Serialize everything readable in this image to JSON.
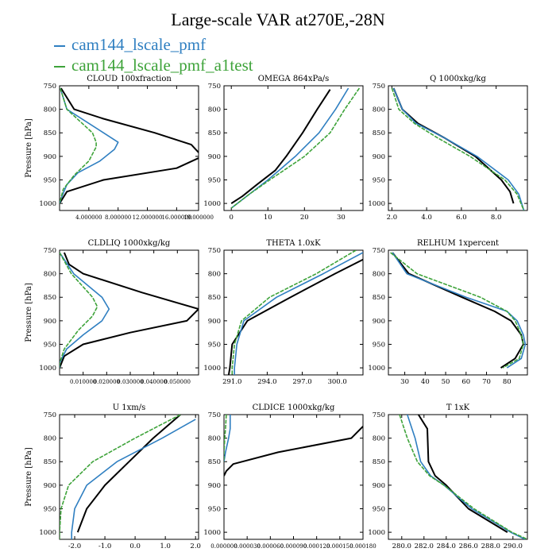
{
  "title": "Large-scale VAR at270E,-28N",
  "legend": [
    {
      "name": "cam144_lscale_pmf",
      "color": "#2f7fc1"
    },
    {
      "name": "cam144_lscale_pmf_a1test",
      "color": "#3ea33a"
    }
  ],
  "colors": {
    "ref": "#000000"
  },
  "chart_data": [
    {
      "type": "line",
      "title": "CLOUD  100xfraction",
      "ylabel": "Pressure [hPa]",
      "xlim": [
        0.0,
        0.19
      ],
      "ylim": [
        750,
        1015
      ],
      "xticks": [
        0.04,
        0.08,
        0.12,
        0.16,
        0.19
      ],
      "xtick_labels": [
        "4.000000",
        "8.000000",
        "12.000000",
        "16.000000",
        "19.000000"
      ],
      "yticks": [
        750,
        800,
        850,
        900,
        950,
        1000
      ],
      "ytick_labels": [
        "750",
        "800",
        "850",
        "900",
        "950",
        "1000"
      ],
      "series": [
        {
          "color": "#000000",
          "y": [
            755,
            800,
            820,
            850,
            875,
            900,
            925,
            950,
            975,
            1000
          ],
          "x": [
            0.002,
            0.02,
            0.06,
            0.13,
            0.18,
            0.195,
            0.16,
            0.06,
            0.01,
            0.0
          ]
        },
        {
          "color": "#2f7fc1",
          "y": [
            755,
            800,
            850,
            870,
            885,
            910,
            935,
            960,
            990,
            1000
          ],
          "x": [
            0.001,
            0.01,
            0.06,
            0.08,
            0.075,
            0.055,
            0.025,
            0.01,
            0.002,
            0.0
          ]
        },
        {
          "color": "#3ea33a",
          "y": [
            755,
            800,
            850,
            870,
            880,
            910,
            940,
            970,
            1000
          ],
          "x": [
            0.001,
            0.01,
            0.045,
            0.05,
            0.05,
            0.04,
            0.02,
            0.005,
            0.0
          ]
        }
      ]
    },
    {
      "type": "line",
      "title": "OMEGA  864xPa/s",
      "ylabel": "",
      "xlim": [
        -2,
        36
      ],
      "ylim": [
        750,
        1015
      ],
      "xticks": [
        0,
        10,
        20,
        30
      ],
      "xtick_labels": [
        "0",
        "10",
        "20",
        "30"
      ],
      "yticks": [
        750,
        800,
        850,
        900,
        950,
        1000
      ],
      "ytick_labels": [
        "750",
        "800",
        "850",
        "900",
        "950",
        "1000"
      ],
      "series": [
        {
          "color": "#000000",
          "y": [
            758,
            800,
            850,
            900,
            930,
            960,
            985,
            1000
          ],
          "x": [
            27,
            23.5,
            19.5,
            15,
            12,
            7,
            3,
            0
          ]
        },
        {
          "color": "#2f7fc1",
          "y": [
            755,
            800,
            850,
            900,
            950,
            980,
            1010
          ],
          "x": [
            32,
            28.5,
            24,
            17.5,
            10,
            5,
            0
          ]
        },
        {
          "color": "#3ea33a",
          "y": [
            755,
            800,
            850,
            900,
            950,
            980,
            1010
          ],
          "x": [
            35,
            31,
            27,
            20,
            10.5,
            5,
            0
          ]
        }
      ]
    },
    {
      "type": "line",
      "title": "Q  1000xkg/kg",
      "ylabel": "",
      "xlim": [
        1.8,
        9.8
      ],
      "ylim": [
        750,
        1015
      ],
      "xticks": [
        2.0,
        4.0,
        6.0,
        8.0
      ],
      "xtick_labels": [
        "2.0",
        "4.0",
        "6.0",
        "8.0"
      ],
      "yticks": [
        750,
        800,
        850,
        900,
        950,
        1000
      ],
      "ytick_labels": [
        "750",
        "800",
        "850",
        "900",
        "950",
        "1000"
      ],
      "series": [
        {
          "color": "#000000",
          "y": [
            755,
            800,
            830,
            860,
            900,
            950,
            975,
            1000
          ],
          "x": [
            2.1,
            2.6,
            3.5,
            5.0,
            6.8,
            8.3,
            8.8,
            9.0
          ]
        },
        {
          "color": "#2f7fc1",
          "y": [
            755,
            800,
            830,
            860,
            900,
            950,
            980,
            1015
          ],
          "x": [
            2.1,
            2.6,
            3.4,
            5.0,
            6.9,
            8.7,
            9.3,
            9.6
          ]
        },
        {
          "color": "#3ea33a",
          "y": [
            755,
            800,
            830,
            860,
            900,
            950,
            980,
            1015
          ],
          "x": [
            2.0,
            2.4,
            3.3,
            4.6,
            6.5,
            8.5,
            9.2,
            9.6
          ]
        }
      ]
    },
    {
      "type": "line",
      "title": "CLDLIQ  1000xkg/kg",
      "ylabel": "Pressure [hPa]",
      "xlim": [
        0.0,
        0.059
      ],
      "ylim": [
        750,
        1015
      ],
      "xticks": [
        0.01,
        0.02,
        0.03,
        0.04,
        0.05
      ],
      "xtick_labels": [
        "0.010000",
        "0.020000",
        "0.030000",
        "0.040000",
        "0.050000"
      ],
      "yticks": [
        750,
        800,
        850,
        900,
        950,
        1000
      ],
      "ytick_labels": [
        "750",
        "800",
        "850",
        "900",
        "950",
        "1000"
      ],
      "series": [
        {
          "color": "#000000",
          "y": [
            755,
            780,
            800,
            840,
            875,
            900,
            925,
            950,
            975,
            1000
          ],
          "x": [
            0.002,
            0.004,
            0.01,
            0.035,
            0.059,
            0.054,
            0.03,
            0.01,
            0.002,
            0.0
          ]
        },
        {
          "color": "#2f7fc1",
          "y": [
            755,
            800,
            850,
            875,
            900,
            930,
            960,
            990,
            1000
          ],
          "x": [
            0.0,
            0.006,
            0.018,
            0.021,
            0.018,
            0.01,
            0.003,
            0.0,
            0.0
          ]
        },
        {
          "color": "#3ea33a",
          "y": [
            755,
            800,
            850,
            870,
            890,
            920,
            960,
            990,
            1000
          ],
          "x": [
            0.0,
            0.005,
            0.014,
            0.016,
            0.014,
            0.008,
            0.002,
            0.0,
            0.0
          ]
        }
      ]
    },
    {
      "type": "line",
      "title": "THETA  1.0xK",
      "ylabel": "",
      "xlim": [
        290.3,
        302.2
      ],
      "ylim": [
        750,
        1015
      ],
      "xticks": [
        291.0,
        294.0,
        297.0,
        300.0
      ],
      "xtick_labels": [
        "291.0",
        "294.0",
        "297.0",
        "300.0"
      ],
      "yticks": [
        750,
        800,
        850,
        900,
        950,
        1000
      ],
      "ytick_labels": [
        "750",
        "800",
        "850",
        "900",
        "950",
        "1000"
      ],
      "series": [
        {
          "color": "#000000",
          "y": [
            770,
            800,
            850,
            900,
            950,
            1000,
            1015
          ],
          "x": [
            302.2,
            299.8,
            296.0,
            292.3,
            291.0,
            290.8,
            290.7
          ]
        },
        {
          "color": "#2f7fc1",
          "y": [
            755,
            800,
            850,
            900,
            950,
            1000,
            1015
          ],
          "x": [
            302.2,
            298.8,
            294.8,
            292.0,
            291.4,
            291.2,
            291.2
          ]
        },
        {
          "color": "#3ea33a",
          "y": [
            750,
            800,
            850,
            900,
            950,
            1000,
            1015
          ],
          "x": [
            301.6,
            298.2,
            294.2,
            291.8,
            291.2,
            291.0,
            291.0
          ]
        }
      ]
    },
    {
      "type": "line",
      "title": "RELHUM  1xpercent",
      "ylabel": "",
      "xlim": [
        22,
        90
      ],
      "ylim": [
        750,
        1015
      ],
      "xticks": [
        30,
        40,
        50,
        60,
        70,
        80
      ],
      "xtick_labels": [
        "30",
        "40",
        "50",
        "60",
        "70",
        "80"
      ],
      "yticks": [
        750,
        800,
        850,
        900,
        950,
        1000
      ],
      "ytick_labels": [
        "750",
        "800",
        "850",
        "900",
        "950",
        "1000"
      ],
      "series": [
        {
          "color": "#000000",
          "y": [
            755,
            800,
            850,
            880,
            900,
            930,
            950,
            980,
            1000
          ],
          "x": [
            24,
            32,
            58,
            74,
            82,
            87,
            88,
            84,
            77
          ]
        },
        {
          "color": "#2f7fc1",
          "y": [
            755,
            800,
            850,
            880,
            900,
            930,
            950,
            980,
            1000
          ],
          "x": [
            24,
            31,
            60,
            80,
            85,
            88,
            89,
            87,
            80
          ]
        },
        {
          "color": "#3ea33a",
          "y": [
            755,
            800,
            850,
            880,
            900,
            930,
            950,
            980,
            1000
          ],
          "x": [
            23,
            36,
            67,
            80,
            84,
            87,
            88,
            86,
            78
          ]
        }
      ]
    },
    {
      "type": "line",
      "title": "U  1xm/s",
      "ylabel": "Pressure [hPa]",
      "xlim": [
        -2.5,
        2.1
      ],
      "ylim": [
        750,
        1015
      ],
      "xticks": [
        -2.0,
        -1.0,
        0.0,
        1.0,
        2.0
      ],
      "xtick_labels": [
        "-2.0",
        "-1.0",
        "0.0",
        "1.0",
        "2.0"
      ],
      "yticks": [
        750,
        800,
        850,
        900,
        950,
        1000
      ],
      "ytick_labels": [
        "750",
        "800",
        "850",
        "900",
        "950",
        "1000"
      ],
      "series": [
        {
          "color": "#000000",
          "y": [
            750,
            800,
            850,
            900,
            950,
            1000
          ],
          "x": [
            1.5,
            0.6,
            -0.2,
            -1.0,
            -1.6,
            -1.9
          ]
        },
        {
          "color": "#2f7fc1",
          "y": [
            760,
            800,
            850,
            900,
            950,
            1000,
            1015
          ],
          "x": [
            2.0,
            0.9,
            -0.6,
            -1.6,
            -2.0,
            -2.1,
            -2.1
          ]
        },
        {
          "color": "#3ea33a",
          "y": [
            750,
            800,
            850,
            900,
            950,
            1000,
            1015
          ],
          "x": [
            1.5,
            0.0,
            -1.4,
            -2.2,
            -2.45,
            -2.5,
            -2.5
          ]
        }
      ]
    },
    {
      "type": "line",
      "title": "CLDICE  1000xkg/kg",
      "ylabel": "",
      "xlim": [
        0.0,
        0.00018
      ],
      "ylim": [
        750,
        1015
      ],
      "xticks": [
        0.0,
        3e-05,
        6e-05,
        9e-05,
        0.00012,
        0.00015,
        0.00018
      ],
      "xtick_labels": [
        "0.000000",
        "0.000030",
        "0.000060",
        "0.000090",
        "0.000120",
        "0.000150",
        "0.000180"
      ],
      "yticks": [
        750,
        800,
        850,
        900,
        950,
        1000
      ],
      "ytick_labels": [
        "750",
        "800",
        "850",
        "900",
        "950",
        "1000"
      ],
      "series": [
        {
          "color": "#000000",
          "y": [
            775,
            800,
            830,
            855,
            870,
            880
          ],
          "x": [
            0.00018,
            0.000165,
            7e-05,
            1.2e-05,
            3e-06,
            0.0
          ]
        },
        {
          "color": "#2f7fc1",
          "y": [
            750,
            780,
            800,
            830,
            850
          ],
          "x": [
            8e-06,
            8e-06,
            6e-06,
            2e-06,
            0.0
          ]
        },
        {
          "color": "#3ea33a",
          "y": [
            750,
            780,
            800,
            830,
            850
          ],
          "x": [
            3e-06,
            2e-06,
            1e-06,
            0.0,
            0.0
          ]
        }
      ]
    },
    {
      "type": "line",
      "title": "T  1xK",
      "ylabel": "",
      "xlim": [
        278.8,
        291.3
      ],
      "ylim": [
        750,
        1015
      ],
      "xticks": [
        280.0,
        282.0,
        284.0,
        286.0,
        288.0,
        290.0
      ],
      "xtick_labels": [
        "280.0",
        "282.0",
        "284.0",
        "286.0",
        "288.0",
        "290.0"
      ],
      "yticks": [
        750,
        800,
        850,
        900,
        950,
        1000
      ],
      "ytick_labels": [
        "750",
        "800",
        "850",
        "900",
        "950",
        "1000"
      ],
      "series": [
        {
          "color": "#000000",
          "y": [
            750,
            780,
            850,
            880,
            900,
            950,
            1000
          ],
          "x": [
            281.5,
            282.3,
            282.4,
            283.0,
            284.0,
            286.0,
            289.5
          ]
        },
        {
          "color": "#2f7fc1",
          "y": [
            750,
            800,
            850,
            880,
            900,
            950,
            1000,
            1015
          ],
          "x": [
            280.5,
            281.2,
            281.7,
            282.6,
            283.8,
            286.3,
            289.8,
            291.1
          ]
        },
        {
          "color": "#3ea33a",
          "y": [
            750,
            800,
            850,
            880,
            900,
            950,
            1000,
            1015
          ],
          "x": [
            279.8,
            280.5,
            281.4,
            282.5,
            283.8,
            286.5,
            289.9,
            291.3
          ]
        }
      ]
    }
  ]
}
